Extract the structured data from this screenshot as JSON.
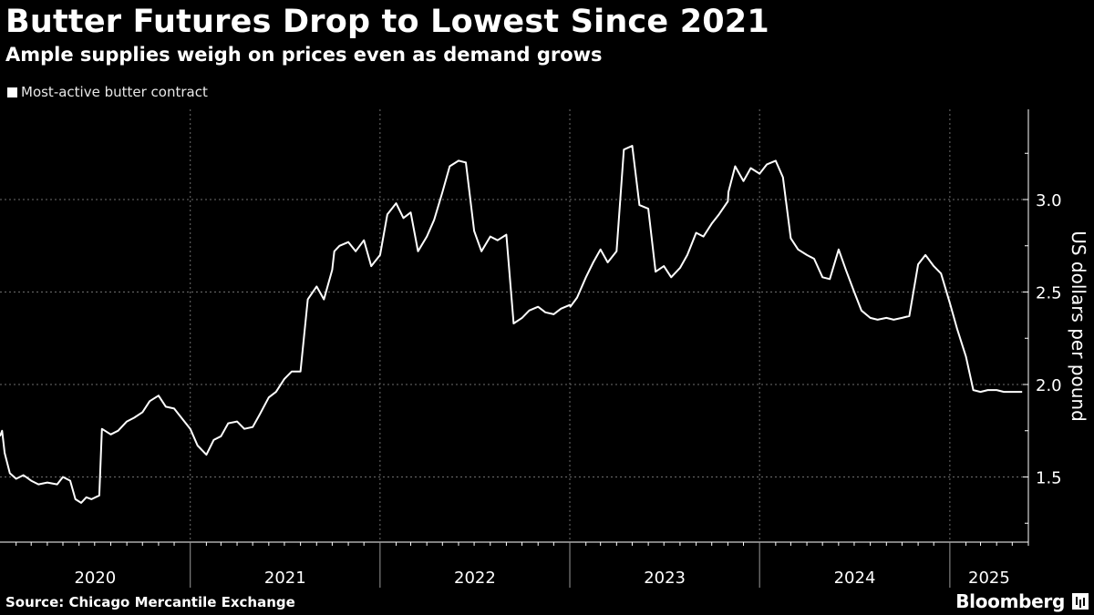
{
  "header": {
    "title": "Butter Futures Drop to Lowest Since 2021",
    "subtitle": "Ample supplies weigh on prices even as demand grows"
  },
  "legend": {
    "label": "Most-active butter contract"
  },
  "footer": {
    "source": "Source: Chicago Mercantile Exchange",
    "brand": "Bloomberg"
  },
  "colors": {
    "background": "#000000",
    "line": "#ffffff",
    "grid": "#6e6e6e"
  },
  "chart_data": {
    "type": "line",
    "title": "Butter Futures Drop to Lowest Since 2021",
    "subtitle": "Ample supplies weigh on prices even as demand grows",
    "ylabel": "US dollars per pound",
    "xlabel": "",
    "ylim": [
      1.25,
      3.5
    ],
    "xlim": [
      "2020-01-01",
      "2025-06-01"
    ],
    "yticks": [
      1.5,
      2.0,
      2.5,
      3.0
    ],
    "ytick_labels": [
      "1.5",
      "2.0",
      "2.5",
      "3.0"
    ],
    "xtick_labels": [
      "2020",
      "2021",
      "2022",
      "2023",
      "2024",
      "2025"
    ],
    "grid": true,
    "legend_position": "top-left",
    "series": [
      {
        "name": "Most-active butter contract",
        "x": [
          "2020-01-01",
          "2020-01-05",
          "2020-01-10",
          "2020-01-20",
          "2020-02-01",
          "2020-02-15",
          "2020-03-01",
          "2020-03-15",
          "2020-04-01",
          "2020-04-20",
          "2020-05-01",
          "2020-05-15",
          "2020-05-25",
          "2020-06-05",
          "2020-06-15",
          "2020-06-25",
          "2020-07-10",
          "2020-07-15",
          "2020-08-01",
          "2020-08-15",
          "2020-09-01",
          "2020-09-15",
          "2020-10-01",
          "2020-10-15",
          "2020-11-01",
          "2020-11-15",
          "2020-12-01",
          "2020-12-15",
          "2021-01-01",
          "2021-01-15",
          "2021-02-01",
          "2021-02-15",
          "2021-03-01",
          "2021-03-15",
          "2021-04-01",
          "2021-04-15",
          "2021-05-01",
          "2021-05-15",
          "2021-06-01",
          "2021-06-15",
          "2021-07-01",
          "2021-07-15",
          "2021-08-01",
          "2021-08-15",
          "2021-09-01",
          "2021-09-15",
          "2021-10-01",
          "2021-10-05",
          "2021-10-15",
          "2021-11-01",
          "2021-11-15",
          "2021-12-01",
          "2021-12-15",
          "2022-01-01",
          "2022-01-15",
          "2022-02-01",
          "2022-02-15",
          "2022-03-01",
          "2022-03-15",
          "2022-04-01",
          "2022-04-15",
          "2022-05-01",
          "2022-05-15",
          "2022-06-01",
          "2022-06-15",
          "2022-07-01",
          "2022-07-15",
          "2022-08-01",
          "2022-08-15",
          "2022-09-01",
          "2022-09-15",
          "2022-10-01",
          "2022-10-15",
          "2022-11-01",
          "2022-11-15",
          "2022-12-01",
          "2022-12-15",
          "2023-01-01",
          "2023-01-02",
          "2023-01-15",
          "2023-02-01",
          "2023-02-15",
          "2023-03-01",
          "2023-03-15",
          "2023-04-01",
          "2023-04-15",
          "2023-05-01",
          "2023-05-15",
          "2023-06-01",
          "2023-06-15",
          "2023-07-01",
          "2023-07-15",
          "2023-08-01",
          "2023-08-15",
          "2023-09-01",
          "2023-09-15",
          "2023-10-01",
          "2023-10-15",
          "2023-11-01",
          "2023-11-02",
          "2023-11-15",
          "2023-12-01",
          "2023-12-15",
          "2024-01-01",
          "2024-01-15",
          "2024-02-01",
          "2024-02-15",
          "2024-03-01",
          "2024-03-15",
          "2024-04-01",
          "2024-04-15",
          "2024-05-01",
          "2024-05-15",
          "2024-06-01",
          "2024-06-15",
          "2024-07-01",
          "2024-07-15",
          "2024-08-01",
          "2024-08-15",
          "2024-09-01",
          "2024-09-15",
          "2024-10-01",
          "2024-10-15",
          "2024-11-01",
          "2024-11-15",
          "2024-12-01",
          "2024-12-15",
          "2025-01-01",
          "2025-01-15",
          "2025-02-01",
          "2025-02-15",
          "2025-03-01",
          "2025-03-15",
          "2025-04-01",
          "2025-04-15",
          "2025-05-01",
          "2025-05-10",
          "2025-05-20"
        ],
        "y": [
          1.72,
          1.75,
          1.63,
          1.52,
          1.49,
          1.51,
          1.48,
          1.46,
          1.47,
          1.46,
          1.5,
          1.48,
          1.38,
          1.36,
          1.39,
          1.38,
          1.4,
          1.76,
          1.73,
          1.75,
          1.8,
          1.82,
          1.85,
          1.91,
          1.94,
          1.88,
          1.87,
          1.82,
          1.76,
          1.67,
          1.62,
          1.7,
          1.72,
          1.79,
          1.8,
          1.76,
          1.77,
          1.84,
          1.93,
          1.96,
          2.03,
          2.07,
          2.07,
          2.46,
          2.53,
          2.46,
          2.62,
          2.72,
          2.75,
          2.77,
          2.72,
          2.78,
          2.64,
          2.7,
          2.92,
          2.98,
          2.9,
          2.93,
          2.72,
          2.8,
          2.89,
          3.04,
          3.18,
          3.21,
          3.2,
          2.83,
          2.72,
          2.8,
          2.78,
          2.81,
          2.33,
          2.36,
          2.4,
          2.42,
          2.39,
          2.38,
          2.41,
          2.43,
          2.42,
          2.47,
          2.58,
          2.66,
          2.73,
          2.66,
          2.72,
          3.27,
          3.29,
          2.97,
          2.95,
          2.61,
          2.64,
          2.58,
          2.63,
          2.7,
          2.82,
          2.8,
          2.87,
          2.92,
          2.99,
          3.04,
          3.18,
          3.1,
          3.17,
          3.14,
          3.19,
          3.21,
          3.12,
          2.79,
          2.73,
          2.7,
          2.68,
          2.58,
          2.57,
          2.73,
          2.62,
          2.5,
          2.4,
          2.36,
          2.35,
          2.36,
          2.35,
          2.36,
          2.37,
          2.65,
          2.7,
          2.64,
          2.6,
          2.44,
          2.3,
          2.15,
          1.97,
          1.96,
          1.97,
          1.97,
          1.96,
          1.96,
          1.96,
          1.96
        ]
      }
    ]
  }
}
